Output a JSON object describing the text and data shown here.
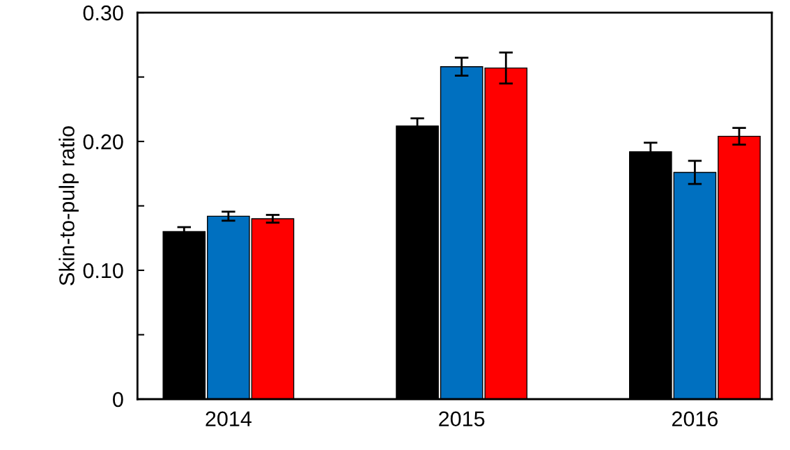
{
  "chart_data": {
    "type": "bar",
    "ylabel": "Skin-to-pulp ratio",
    "categories": [
      "2014",
      "2015",
      "2016"
    ],
    "series": [
      {
        "color": "#000000",
        "values": [
          0.13,
          0.212,
          0.192
        ],
        "errors": [
          0.0035,
          0.006,
          0.007
        ]
      },
      {
        "color": "#0070c0",
        "values": [
          0.142,
          0.258,
          0.176
        ],
        "errors": [
          0.0035,
          0.007,
          0.009
        ]
      },
      {
        "color": "#ff0000",
        "values": [
          0.14,
          0.257,
          0.204
        ],
        "errors": [
          0.003,
          0.012,
          0.0065
        ]
      }
    ],
    "ylim": [
      0,
      0.3
    ],
    "yticks": [
      0,
      {
        "value": 0.05,
        "label": null
      },
      {
        "value": 0.1,
        "label": "0.10"
      },
      {
        "value": 0.15,
        "label": null
      },
      {
        "value": 0.2,
        "label": "0.20"
      },
      {
        "value": 0.25,
        "label": null
      },
      {
        "value": 0.3,
        "label": "0.30"
      }
    ],
    "grid": false,
    "legend": false
  }
}
